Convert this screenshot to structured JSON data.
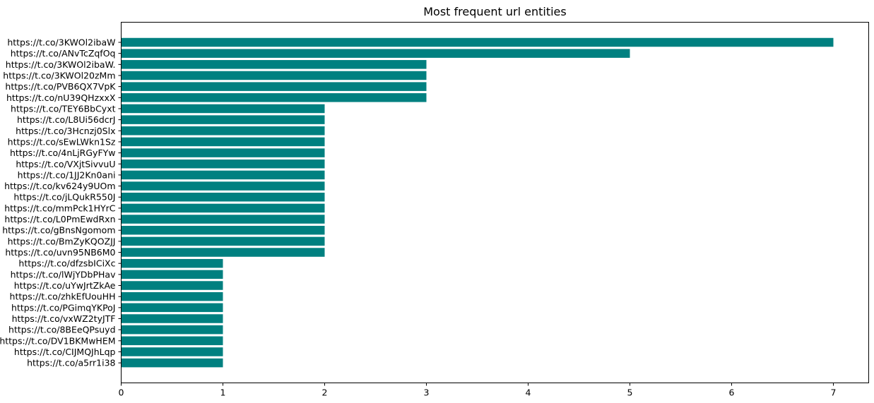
{
  "chart_data": {
    "type": "bar",
    "orientation": "horizontal",
    "title": "Most frequent url entities",
    "xlabel": "",
    "ylabel": "",
    "xlim": [
      0,
      7.35
    ],
    "xticks": [
      0,
      1,
      2,
      3,
      4,
      5,
      6,
      7
    ],
    "grid": false,
    "bar_color": "#008080",
    "categories": [
      "https://t.co/3KWOl2ibaW",
      "https://t.co/ANvTcZqfOq",
      "https://t.co/3KWOl2ibaW.",
      "https://t.co/3KWOl20zMm",
      "https://t.co/PVB6QX7VpK",
      "https://t.co/nU39QHzxxX",
      "https://t.co/TEY6BbCyxt",
      "https://t.co/L8Ui56dcrJ",
      "https://t.co/3Hcnzj0Slx",
      "https://t.co/sEwLWkn1Sz",
      "https://t.co/4nLjRGyFYw",
      "https://t.co/VXjtSivvuU",
      "https://t.co/1JJ2Kn0ani",
      "https://t.co/kv624y9UOm",
      "https://t.co/jLQukR550J",
      "https://t.co/mmPck1HYrC",
      "https://t.co/L0PmEwdRxn",
      "https://t.co/gBnsNgomom",
      "https://t.co/BmZyKQOZJJ",
      "https://t.co/uvn95NB6M0",
      "https://t.co/dfzsbICiXc",
      "https://t.co/lWjYDbPHav",
      "https://t.co/uYwJrtZkAe",
      "https://t.co/zhkEfUouHH",
      "https://t.co/PGimqYKPoJ",
      "https://t.co/vxWZ2tyJTF",
      "https://t.co/8BEeQPsuyd",
      "https://t.co/DV1BKMwHEM",
      "https://t.co/CIJMQJhLqp",
      "https://t.co/a5rr1i38"
    ],
    "values": [
      7,
      5,
      3,
      3,
      3,
      3,
      2,
      2,
      2,
      2,
      2,
      2,
      2,
      2,
      2,
      2,
      2,
      2,
      2,
      2,
      1,
      1,
      1,
      1,
      1,
      1,
      1,
      1,
      1,
      1
    ]
  }
}
